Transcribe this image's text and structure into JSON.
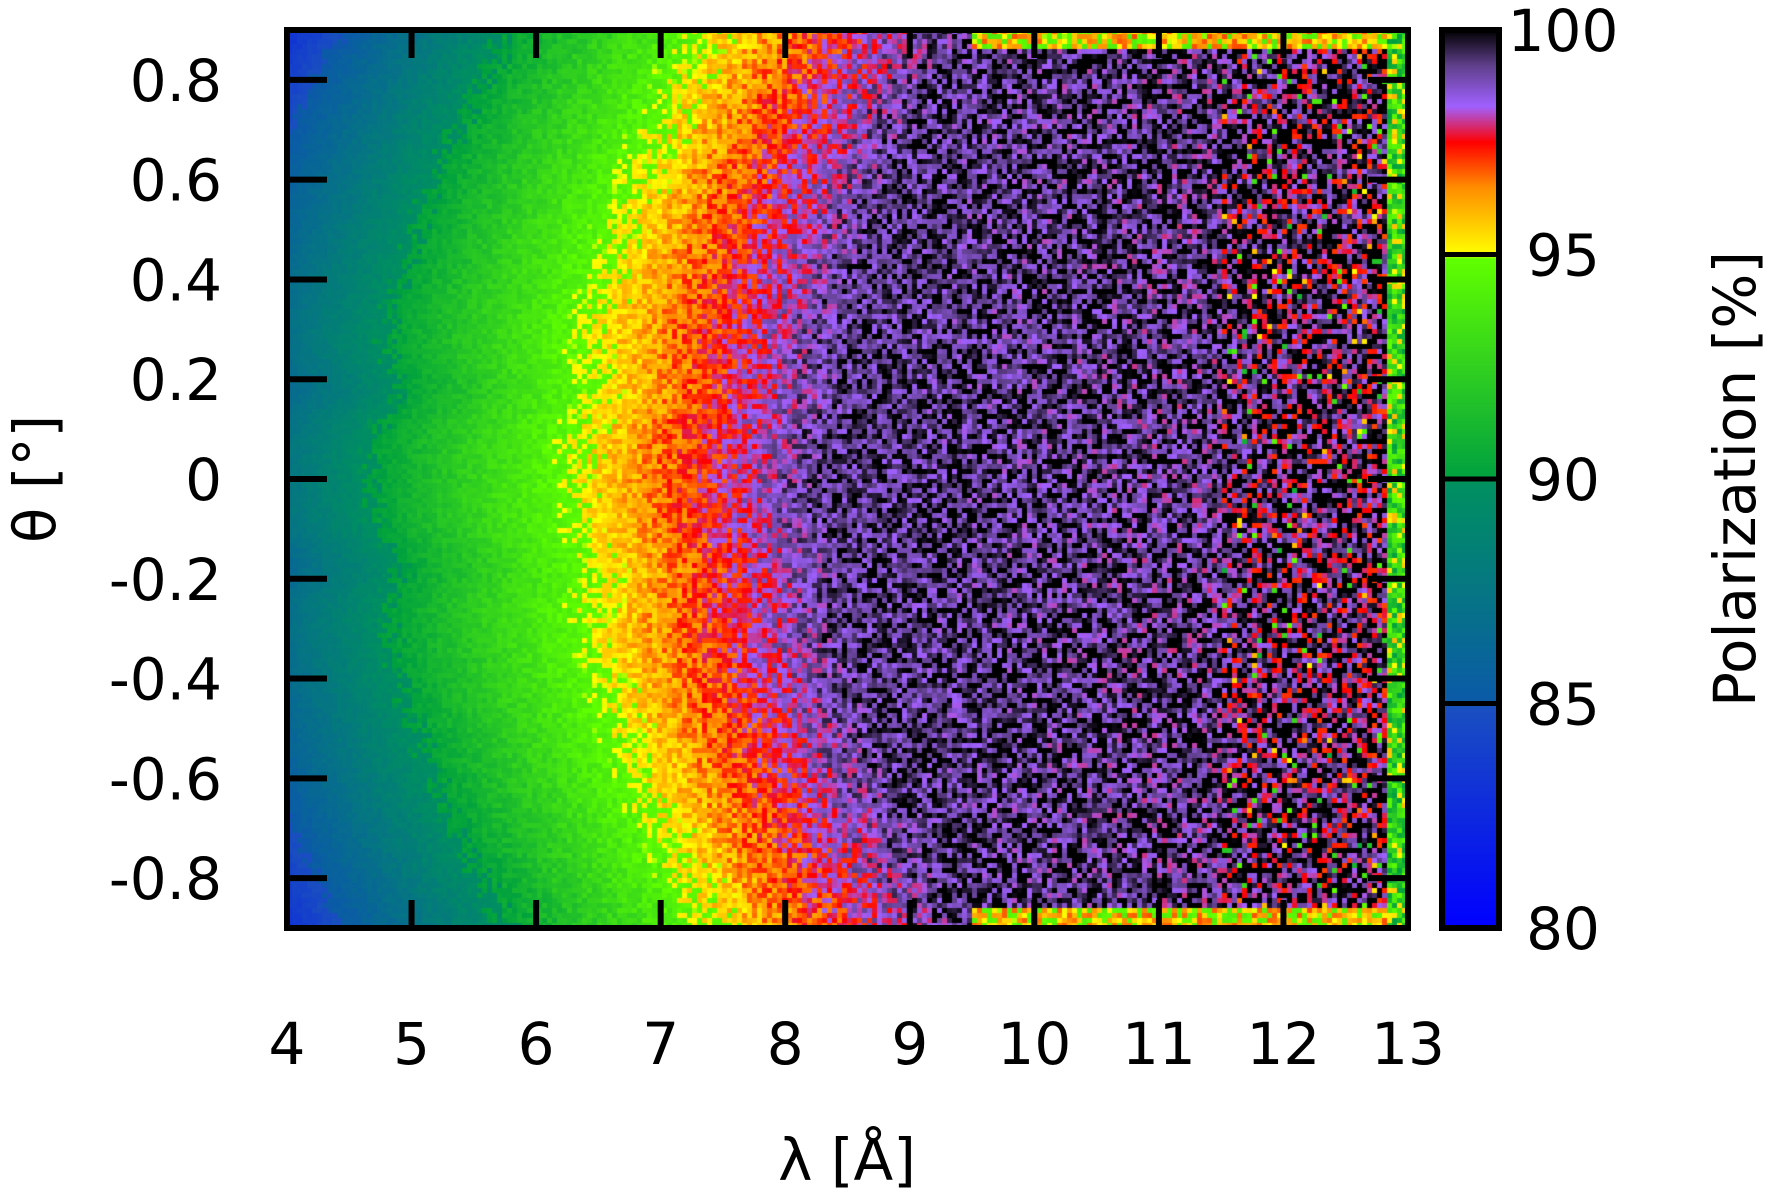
{
  "chart_data": {
    "type": "heatmap",
    "xlabel": "λ [Å]",
    "ylabel": "θ [°]",
    "colorbar_label": "Polarization [%]",
    "xlim": [
      4,
      13
    ],
    "ylim": [
      -0.9,
      0.9
    ],
    "x_ticks": [
      4,
      5,
      6,
      7,
      8,
      9,
      10,
      11,
      12,
      13
    ],
    "x_tick_labels": [
      "4",
      "5",
      "6",
      "7",
      "8",
      "9",
      "10",
      "11",
      "12",
      "13"
    ],
    "y_ticks": [
      -0.8,
      -0.6,
      -0.4,
      -0.2,
      0,
      0.2,
      0.4,
      0.6,
      0.8
    ],
    "y_tick_labels": [
      "-0.8",
      "-0.6",
      "-0.4",
      "-0.2",
      "0",
      "0.2",
      "0.4",
      "0.6",
      "0.8"
    ],
    "colorbar_range": [
      80,
      100
    ],
    "colorbar_ticks": [
      80,
      85,
      90,
      95,
      100
    ],
    "colorbar_tick_labels": [
      "80",
      "85",
      "90",
      "95",
      "100"
    ],
    "colormap_stops": [
      {
        "value": 80,
        "color": "#0000ff"
      },
      {
        "value": 84.9,
        "color": "#1a4fc0"
      },
      {
        "value": 85,
        "color": "#0b5aa8"
      },
      {
        "value": 89.9,
        "color": "#009060"
      },
      {
        "value": 90,
        "color": "#00a040"
      },
      {
        "value": 94.9,
        "color": "#60ff00"
      },
      {
        "value": 95,
        "color": "#ffff00"
      },
      {
        "value": 96.5,
        "color": "#ff8c00"
      },
      {
        "value": 97.5,
        "color": "#ff0000"
      },
      {
        "value": 98.3,
        "color": "#a060ff"
      },
      {
        "value": 99.2,
        "color": "#60408c"
      },
      {
        "value": 100,
        "color": "#000000"
      }
    ],
    "grid": false
  }
}
